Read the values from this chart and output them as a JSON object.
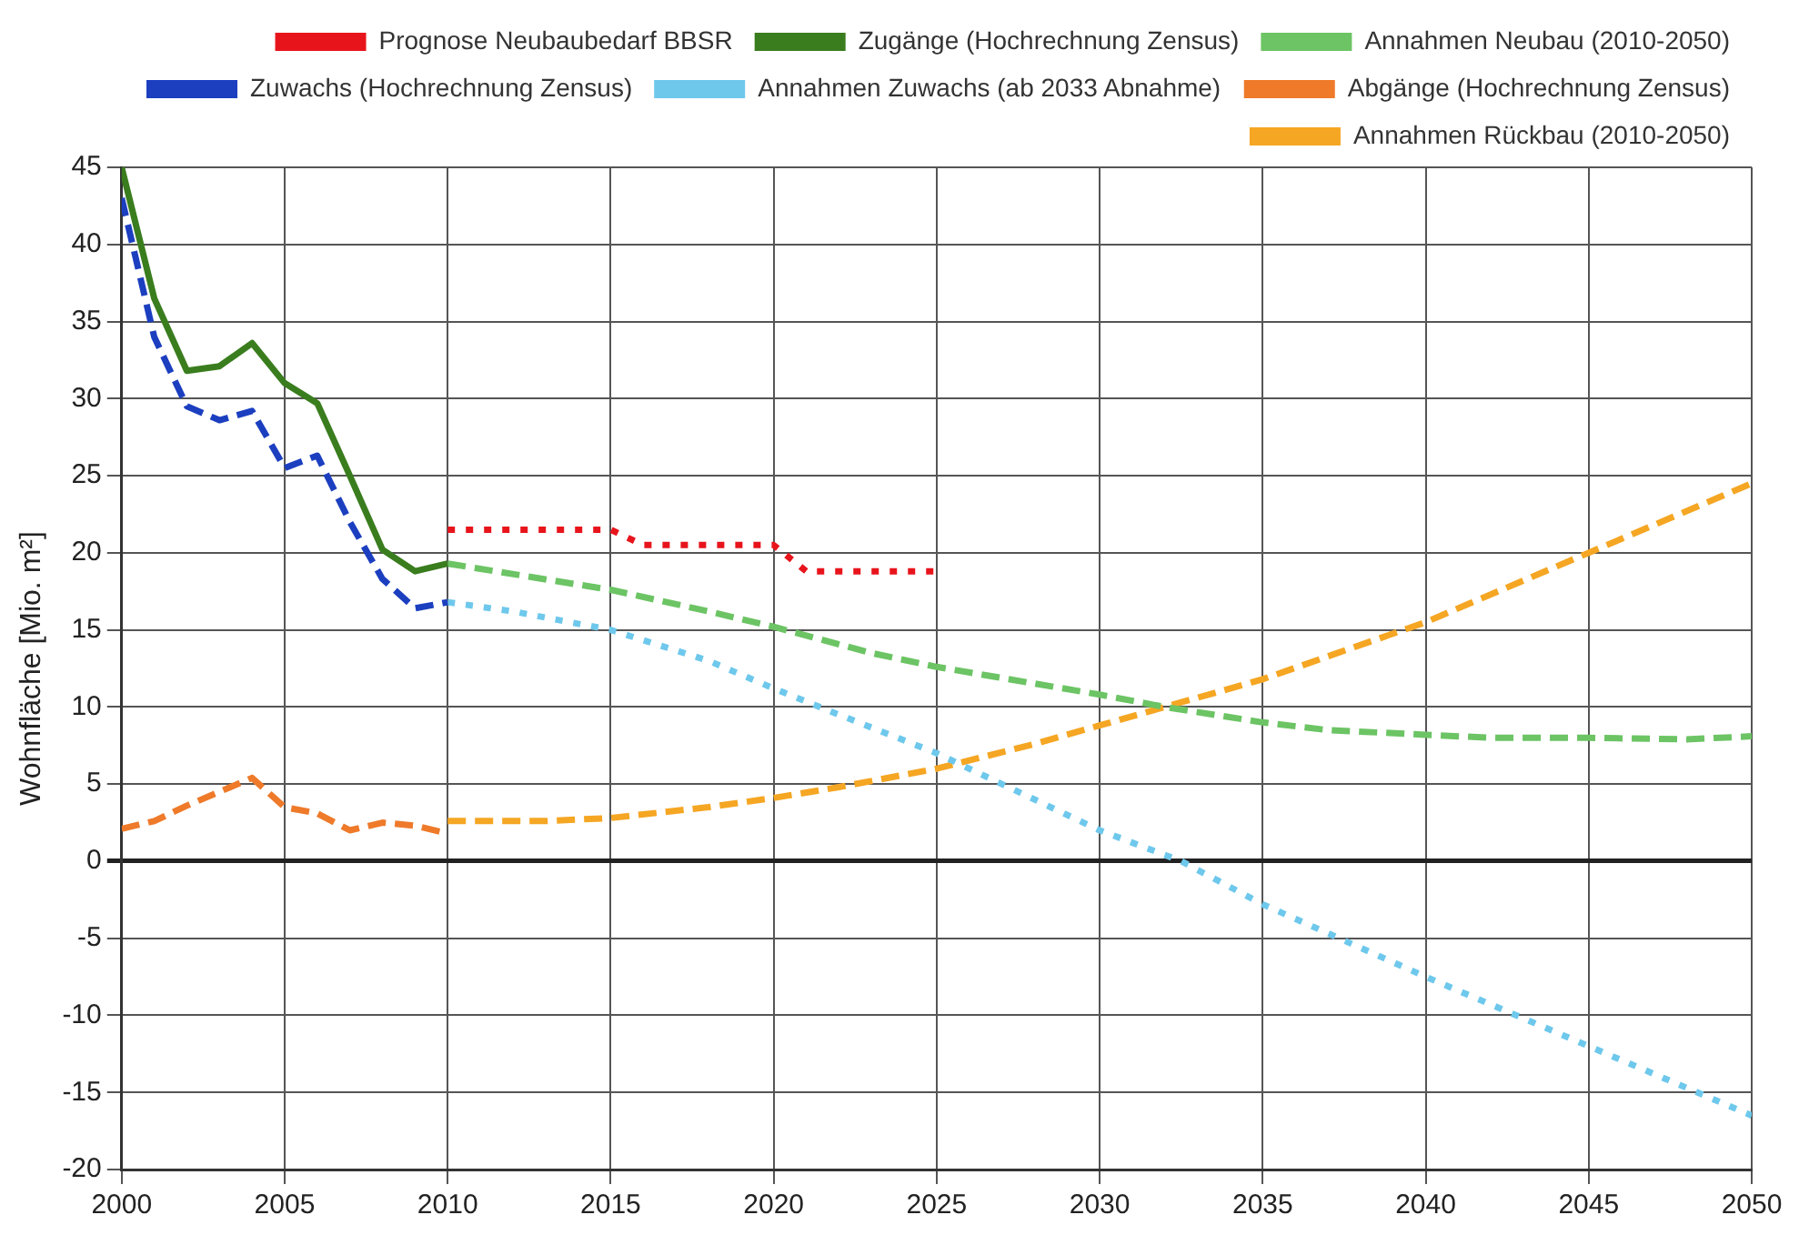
{
  "chart_data": {
    "type": "line",
    "ylabel": "Wohnfläche [Mio. m²]",
    "xlim": [
      2000,
      2050
    ],
    "xticks": [
      2000,
      2005,
      2010,
      2015,
      2020,
      2025,
      2030,
      2035,
      2040,
      2045,
      2050
    ],
    "ylim": [
      -20,
      45
    ],
    "yticks": [
      -20,
      -15,
      -10,
      -5,
      0,
      5,
      10,
      15,
      20,
      25,
      30,
      35,
      40,
      45
    ],
    "grid": true,
    "legend": "top",
    "marker": "none",
    "series": [
      {
        "name": "Prognose Neubaubedarf BBSR",
        "color": "#e8141c",
        "line_style": "dotted",
        "x": [
          2010,
          2015,
          2016,
          2020,
          2021,
          2025
        ],
        "values": [
          21.5,
          21.5,
          20.5,
          20.5,
          18.8,
          18.8
        ]
      },
      {
        "name": "Zugänge (Hochrechnung Zensus)",
        "color": "#3a7d1e",
        "line_style": "solid",
        "x": [
          2000,
          2001,
          2002,
          2003,
          2004,
          2005,
          2006,
          2007,
          2008,
          2009,
          2010
        ],
        "values": [
          45,
          36.5,
          31.8,
          32.1,
          33.6,
          31,
          29.7,
          25,
          20.2,
          18.8,
          19.3
        ]
      },
      {
        "name": "Annahmen Neubau (2010-2050)",
        "color": "#6cc464",
        "line_style": "dashed",
        "x": [
          2010,
          2015,
          2018,
          2020,
          2023,
          2025,
          2030,
          2032,
          2035,
          2037,
          2040,
          2042,
          2045,
          2048,
          2050
        ],
        "values": [
          19.3,
          17.6,
          16.2,
          15.2,
          13.5,
          12.6,
          10.8,
          10,
          9,
          8.5,
          8.2,
          8,
          8,
          7.9,
          8.1
        ]
      },
      {
        "name": "Zuwachs (Hochrechnung Zensus)",
        "color": "#1c3fc0",
        "line_style": "dashed",
        "x": [
          2000,
          2001,
          2002,
          2003,
          2004,
          2005,
          2006,
          2007,
          2008,
          2009,
          2010
        ],
        "values": [
          43,
          34,
          29.5,
          28.6,
          29.2,
          25.5,
          26.3,
          22,
          18.3,
          16.4,
          16.8
        ]
      },
      {
        "name": "Annahmen Zuwachs (ab 2033 Abnahme)",
        "color": "#6ec8ec",
        "line_style": "dotted",
        "x": [
          2010,
          2012,
          2015,
          2018,
          2020,
          2022,
          2025,
          2030,
          2032.5,
          2035,
          2040,
          2045,
          2050
        ],
        "values": [
          16.8,
          16.2,
          15,
          13,
          11.2,
          9.5,
          7,
          2,
          0,
          -2.8,
          -7.5,
          -12,
          -16.5
        ]
      },
      {
        "name": "Abgänge (Hochrechnung Zensus)",
        "color": "#ee7a2a",
        "line_style": "dashed",
        "x": [
          2000,
          2001,
          2002,
          2003,
          2004,
          2005,
          2006,
          2007,
          2008,
          2009,
          2010
        ],
        "values": [
          2.1,
          2.6,
          3.6,
          4.5,
          5.4,
          3.5,
          3.1,
          2.0,
          2.5,
          2.3,
          1.8
        ]
      },
      {
        "name": "Annahmen Rückbau (2010-2050)",
        "color": "#f5a623",
        "line_style": "dashed",
        "x": [
          2010,
          2013,
          2015,
          2018,
          2020,
          2022,
          2025,
          2028,
          2030,
          2032,
          2035,
          2040,
          2045,
          2050
        ],
        "values": [
          2.6,
          2.6,
          2.8,
          3.5,
          4.1,
          4.8,
          6,
          7.6,
          8.8,
          10,
          11.8,
          15.5,
          20,
          24.5
        ]
      }
    ]
  }
}
